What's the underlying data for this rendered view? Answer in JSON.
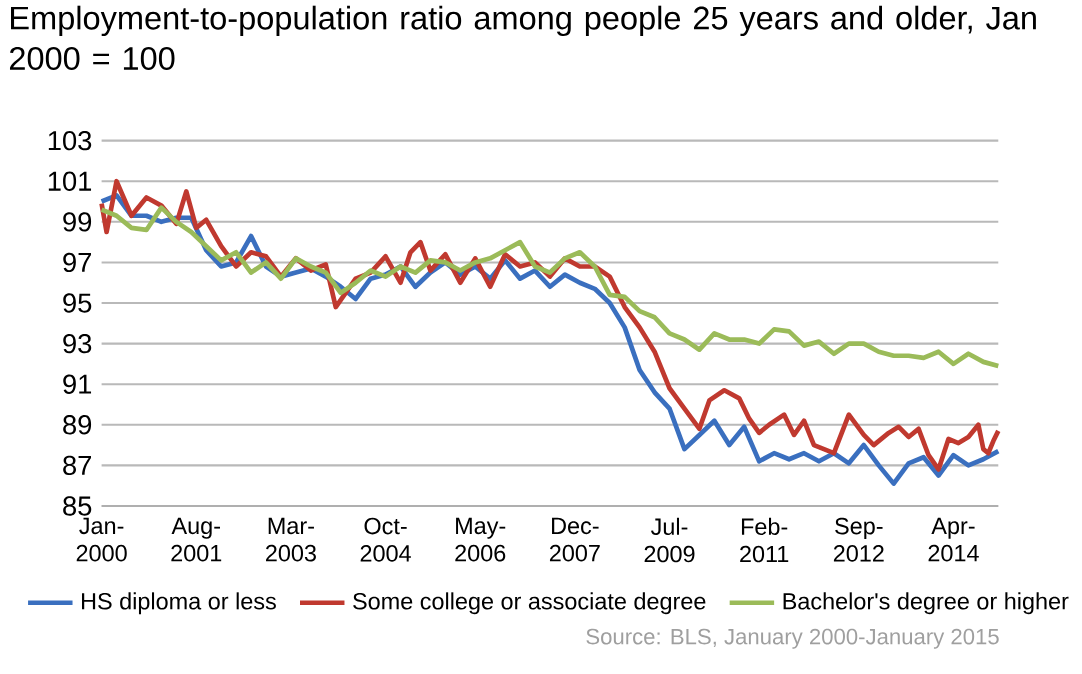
{
  "chart_data": {
    "type": "line",
    "title": "Employment-to-population ratio among people 25 years and older, Jan 2000 = 100",
    "x": [
      "2000-01",
      "2000-04",
      "2000-07",
      "2000-10",
      "2001-01",
      "2001-04",
      "2001-07",
      "2001-10",
      "2002-01",
      "2002-04",
      "2002-07",
      "2002-10",
      "2003-01",
      "2003-04",
      "2003-07",
      "2003-10",
      "2004-01",
      "2004-04",
      "2004-07",
      "2004-10",
      "2005-01",
      "2005-04",
      "2005-07",
      "2005-10",
      "2006-01",
      "2006-04",
      "2006-07",
      "2006-10",
      "2007-01",
      "2007-04",
      "2007-07",
      "2007-10",
      "2008-01",
      "2008-04",
      "2008-07",
      "2008-10",
      "2009-01",
      "2009-04",
      "2009-07",
      "2009-10",
      "2010-01",
      "2010-04",
      "2010-07",
      "2010-10",
      "2011-01",
      "2011-04",
      "2011-07",
      "2011-10",
      "2012-01",
      "2012-04",
      "2012-07",
      "2012-10",
      "2013-01",
      "2013-04",
      "2013-07",
      "2013-10",
      "2014-01",
      "2014-04",
      "2014-07",
      "2014-10",
      "2015-01"
    ],
    "series": [
      {
        "name": "HS diploma or less",
        "color": "#3a6fbf",
        "values": [
          100.0,
          100.3,
          99.3,
          99.3,
          99.0,
          99.2,
          99.2,
          97.6,
          96.8,
          97.0,
          98.3,
          96.8,
          96.3,
          96.5,
          96.7,
          96.3,
          95.8,
          95.2,
          96.2,
          96.4,
          96.8,
          95.8,
          96.5,
          97.0,
          96.4,
          96.8,
          96.2,
          97.1,
          96.2,
          96.6,
          95.8,
          96.4,
          96.0,
          95.7,
          95.0,
          93.8,
          91.7,
          90.6,
          89.8,
          87.8,
          88.5,
          89.2,
          88.0,
          88.9,
          87.2,
          87.6,
          87.3,
          87.6,
          87.2,
          87.6,
          87.1,
          88.0,
          87.0,
          86.1,
          87.1,
          87.4,
          86.5,
          87.5,
          87.0,
          87.3,
          87.7
        ]
      },
      {
        "name": "Some college or associate degree",
        "color": "#c0392f",
        "x": [
          "2000-01",
          "2000-02",
          "2000-04",
          "2000-07",
          "2000-10",
          "2001-01",
          "2001-04",
          "2001-06",
          "2001-08",
          "2001-10",
          "2002-01",
          "2002-04",
          "2002-07",
          "2002-10",
          "2003-01",
          "2003-04",
          "2003-07",
          "2003-10",
          "2003-12",
          "2004-04",
          "2004-07",
          "2004-10",
          "2005-01",
          "2005-03",
          "2005-05",
          "2005-07",
          "2005-10",
          "2006-01",
          "2006-04",
          "2006-07",
          "2006-10",
          "2007-01",
          "2007-04",
          "2007-07",
          "2007-10",
          "2008-01",
          "2008-04",
          "2008-07",
          "2008-10",
          "2009-01",
          "2009-04",
          "2009-07",
          "2009-10",
          "2010-01",
          "2010-03",
          "2010-06",
          "2010-09",
          "2010-11",
          "2011-01",
          "2011-03",
          "2011-06",
          "2011-08",
          "2011-10",
          "2011-12",
          "2012-02",
          "2012-04",
          "2012-07",
          "2012-10",
          "2012-12",
          "2013-03",
          "2013-05",
          "2013-07",
          "2013-09",
          "2013-11",
          "2014-01",
          "2014-03",
          "2014-05",
          "2014-07",
          "2014-09",
          "2014-10",
          "2014-11",
          "2014-12",
          "2015-01"
        ],
        "values": [
          99.9,
          98.5,
          101.0,
          99.3,
          100.2,
          99.8,
          98.9,
          100.5,
          98.7,
          99.1,
          97.8,
          96.8,
          97.5,
          97.3,
          96.3,
          97.2,
          96.6,
          96.9,
          94.8,
          96.2,
          96.5,
          97.3,
          96.0,
          97.5,
          98.0,
          96.6,
          97.4,
          96.0,
          97.2,
          95.8,
          97.4,
          96.8,
          97.0,
          96.3,
          97.2,
          96.8,
          96.8,
          96.3,
          94.8,
          93.8,
          92.6,
          90.8,
          89.8,
          88.8,
          90.2,
          90.7,
          90.3,
          89.3,
          88.6,
          89.0,
          89.5,
          88.5,
          89.2,
          88.0,
          87.8,
          87.6,
          89.5,
          88.5,
          88.0,
          88.6,
          88.9,
          88.4,
          88.8,
          87.5,
          86.8,
          88.3,
          88.1,
          88.4,
          89.0,
          87.8,
          87.6,
          88.2,
          88.7
        ]
      },
      {
        "name": "Bachelor's degree or higher",
        "color": "#9bbb59",
        "values": [
          99.6,
          99.3,
          98.7,
          98.6,
          99.7,
          99.0,
          98.5,
          97.8,
          97.1,
          97.5,
          96.5,
          97.0,
          96.2,
          97.2,
          96.8,
          96.5,
          95.5,
          96.0,
          96.6,
          96.3,
          96.8,
          96.5,
          97.1,
          97.0,
          96.6,
          97.0,
          97.2,
          97.6,
          98.0,
          96.8,
          96.5,
          97.2,
          97.5,
          96.8,
          95.4,
          95.3,
          94.6,
          94.3,
          93.5,
          93.2,
          92.7,
          93.5,
          93.2,
          93.2,
          93.0,
          93.7,
          93.6,
          92.9,
          93.1,
          92.5,
          93.0,
          93.0,
          92.6,
          92.4,
          92.4,
          92.3,
          92.6,
          92.0,
          92.5,
          92.1,
          91.9
        ]
      }
    ],
    "xlim": [
      "2000-01",
      "2015-01"
    ],
    "xticks": [
      {
        "value": "2000-01",
        "label": "Jan-2000"
      },
      {
        "value": "2001-08",
        "label": "Aug-2001"
      },
      {
        "value": "2003-03",
        "label": "Mar-2003"
      },
      {
        "value": "2004-10",
        "label": "Oct-2004"
      },
      {
        "value": "2006-05",
        "label": "May-2006"
      },
      {
        "value": "2007-12",
        "label": "Dec-2007"
      },
      {
        "value": "2009-07",
        "label": "Jul-2009"
      },
      {
        "value": "2011-02",
        "label": "Feb-2011"
      },
      {
        "value": "2012-09",
        "label": "Sep-2012"
      },
      {
        "value": "2014-04",
        "label": "Apr-2014"
      }
    ],
    "ylim": [
      85,
      103
    ],
    "yticks": [
      85,
      87,
      89,
      91,
      93,
      95,
      97,
      99,
      101,
      103
    ],
    "grid": "y",
    "legend": "bottom",
    "annotations": [
      "Source: BLS, January 2000-January 2015"
    ]
  }
}
